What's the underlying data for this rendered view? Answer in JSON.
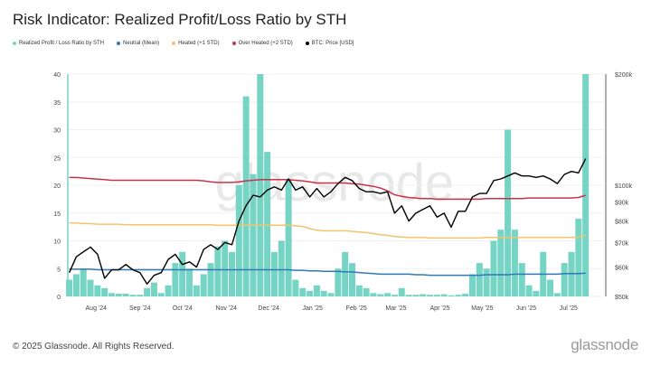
{
  "footer": {
    "copyright": "© 2025 Glassnode. All Rights Reserved.",
    "logo": "glassnode",
    "watermark": "glassnode"
  },
  "chart_data": {
    "type": "bar+line",
    "title": "Risk Indicator: Realized Profit/Loss Ratio by STH",
    "legend": [
      {
        "name": "Realized Profit / Loss Ratio by STH",
        "color": "#76d4c4"
      },
      {
        "name": "Neutral (Mean)",
        "color": "#2f7ab8"
      },
      {
        "name": "Heated (+1 STD)",
        "color": "#f2c46d"
      },
      {
        "name": "Over Heated (+2 STD)",
        "color": "#c8334a"
      },
      {
        "name": "BTC: Price [USD]",
        "color": "#000000"
      }
    ],
    "legend_position": "top-left",
    "y_left": {
      "range": [
        0,
        40
      ],
      "ticks": [
        "0",
        "5",
        "10",
        "15",
        "20",
        "25",
        "30",
        "35",
        "40"
      ]
    },
    "y_right": {
      "scale": "log",
      "range": [
        50000,
        200000
      ],
      "ticks": [
        {
          "v": 50000,
          "l": "$50k"
        },
        {
          "v": 60000,
          "l": "$60k"
        },
        {
          "v": 70000,
          "l": "$70k"
        },
        {
          "v": 80000,
          "l": "$80k"
        },
        {
          "v": 90000,
          "l": "$90k"
        },
        {
          "v": 100000,
          "l": "$100k"
        },
        {
          "v": 200000,
          "l": "$200k"
        }
      ]
    },
    "x_range": [
      "2024-07-12",
      "2025-07-26"
    ],
    "x_ticks": [
      {
        "d": "2024-08-01",
        "l": "Aug '24"
      },
      {
        "d": "2024-09-01",
        "l": "Sep '24"
      },
      {
        "d": "2024-10-01",
        "l": "Oct '24"
      },
      {
        "d": "2024-11-01",
        "l": "Nov '24"
      },
      {
        "d": "2024-12-01",
        "l": "Dec '24"
      },
      {
        "d": "2025-01-01",
        "l": "Jan '25"
      },
      {
        "d": "2025-02-01",
        "l": "Feb '25"
      },
      {
        "d": "2025-03-01",
        "l": "Mar '25"
      },
      {
        "d": "2025-04-01",
        "l": "Apr '25"
      },
      {
        "d": "2025-05-01",
        "l": "May '25"
      },
      {
        "d": "2025-06-01",
        "l": "Jun '25"
      },
      {
        "d": "2025-07-01",
        "l": "Jul '25"
      }
    ],
    "grid": true,
    "columns": [
      "date",
      "ratio",
      "btc_price",
      "neutral_mean",
      "heated_1std",
      "overheated_2std"
    ],
    "rows": [
      [
        "2024-07-13",
        3,
        58000,
        4.9,
        13.2,
        21.4
      ],
      [
        "2024-07-18",
        4,
        64000,
        4.9,
        13.2,
        21.4
      ],
      [
        "2024-07-23",
        5,
        66000,
        4.9,
        13.1,
        21.3
      ],
      [
        "2024-07-28",
        3,
        68000,
        4.9,
        13.1,
        21.2
      ],
      [
        "2024-08-02",
        2,
        65000,
        4.8,
        13.0,
        21.1
      ],
      [
        "2024-08-07",
        1.5,
        56000,
        4.8,
        13.0,
        21.0
      ],
      [
        "2024-08-12",
        0.6,
        59000,
        4.8,
        13.0,
        20.9
      ],
      [
        "2024-08-17",
        0.5,
        59000,
        4.8,
        13.0,
        20.9
      ],
      [
        "2024-08-22",
        0.5,
        61000,
        4.8,
        12.9,
        20.9
      ],
      [
        "2024-08-27",
        0.3,
        59000,
        4.8,
        12.9,
        20.9
      ],
      [
        "2024-09-01",
        0.3,
        58000,
        4.8,
        12.9,
        20.9
      ],
      [
        "2024-09-06",
        1.5,
        54000,
        4.8,
        12.9,
        20.9
      ],
      [
        "2024-09-11",
        2.5,
        57000,
        4.8,
        12.9,
        20.9
      ],
      [
        "2024-09-16",
        0.6,
        58000,
        4.8,
        12.9,
        20.9
      ],
      [
        "2024-09-21",
        2,
        63000,
        4.8,
        12.9,
        20.9
      ],
      [
        "2024-09-26",
        6,
        65000,
        4.8,
        12.9,
        20.9
      ],
      [
        "2024-10-01",
        8,
        61000,
        4.8,
        12.9,
        20.9
      ],
      [
        "2024-10-06",
        5,
        62000,
        4.8,
        12.9,
        20.9
      ],
      [
        "2024-10-11",
        2,
        60000,
        4.8,
        12.9,
        20.9
      ],
      [
        "2024-10-16",
        4,
        67000,
        4.8,
        12.9,
        20.8
      ],
      [
        "2024-10-21",
        6,
        69000,
        4.8,
        12.9,
        20.6
      ],
      [
        "2024-10-26",
        9,
        67000,
        4.8,
        12.8,
        20.5
      ],
      [
        "2024-10-31",
        10,
        70000,
        4.8,
        12.8,
        20.5
      ],
      [
        "2024-11-05",
        8,
        69000,
        4.8,
        12.8,
        20.5
      ],
      [
        "2024-11-10",
        20,
        80000,
        4.8,
        12.8,
        20.6
      ],
      [
        "2024-11-15",
        36,
        88000,
        4.8,
        12.8,
        20.8
      ],
      [
        "2024-11-20",
        22,
        94000,
        4.8,
        12.8,
        20.9
      ],
      [
        "2024-11-25",
        40,
        93000,
        4.8,
        12.8,
        21.0
      ],
      [
        "2024-11-30",
        26,
        97000,
        4.8,
        12.8,
        21.0
      ],
      [
        "2024-12-05",
        8,
        99000,
        4.8,
        12.8,
        21.0
      ],
      [
        "2024-12-10",
        10,
        97000,
        4.8,
        12.8,
        21.0
      ],
      [
        "2024-12-15",
        21,
        104000,
        4.8,
        12.8,
        21.0
      ],
      [
        "2024-12-20",
        3,
        97000,
        4.7,
        12.7,
        20.9
      ],
      [
        "2024-12-25",
        1.5,
        99000,
        4.7,
        12.6,
        20.8
      ],
      [
        "2024-12-30",
        1,
        93000,
        4.6,
        12.2,
        20.6
      ],
      [
        "2025-01-04",
        2,
        98000,
        4.6,
        11.9,
        20.4
      ],
      [
        "2025-01-09",
        1,
        93000,
        4.5,
        11.8,
        20.4
      ],
      [
        "2025-01-14",
        0.6,
        96000,
        4.5,
        11.8,
        20.4
      ],
      [
        "2025-01-19",
        5,
        101000,
        4.5,
        11.8,
        20.4
      ],
      [
        "2025-01-24",
        8,
        105000,
        4.4,
        11.8,
        20.4
      ],
      [
        "2025-01-29",
        6,
        103000,
        4.4,
        11.7,
        20.3
      ],
      [
        "2025-02-03",
        2,
        98000,
        4.3,
        11.6,
        20.2
      ],
      [
        "2025-02-08",
        1.5,
        96000,
        4.2,
        11.5,
        20.0
      ],
      [
        "2025-02-13",
        0.6,
        96000,
        4.1,
        11.3,
        19.8
      ],
      [
        "2025-02-18",
        0.4,
        95000,
        4.0,
        11.1,
        19.5
      ],
      [
        "2025-02-23",
        0.6,
        96000,
        4.0,
        11.0,
        19.0
      ],
      [
        "2025-02-28",
        0.3,
        84000,
        4.0,
        10.8,
        18.3
      ],
      [
        "2025-03-05",
        1.5,
        88000,
        4.0,
        10.7,
        18.0
      ],
      [
        "2025-03-10",
        0.3,
        80000,
        4.0,
        10.6,
        17.8
      ],
      [
        "2025-03-15",
        0.3,
        84000,
        3.9,
        10.6,
        17.7
      ],
      [
        "2025-03-20",
        0.4,
        86000,
        3.9,
        10.6,
        17.6
      ],
      [
        "2025-03-25",
        0.3,
        88000,
        3.8,
        10.5,
        17.6
      ],
      [
        "2025-03-30",
        0.3,
        82000,
        3.8,
        10.5,
        17.5
      ],
      [
        "2025-04-04",
        0.4,
        84000,
        3.8,
        10.5,
        17.5
      ],
      [
        "2025-04-09",
        0.2,
        77000,
        3.8,
        10.5,
        17.5
      ],
      [
        "2025-04-14",
        0.3,
        85000,
        3.8,
        10.5,
        17.5
      ],
      [
        "2025-04-19",
        0.5,
        85000,
        3.8,
        10.5,
        17.5
      ],
      [
        "2025-04-24",
        4,
        93000,
        3.8,
        10.5,
        17.5
      ],
      [
        "2025-04-29",
        6,
        95000,
        3.8,
        10.5,
        17.5
      ],
      [
        "2025-05-04",
        5,
        95000,
        3.9,
        10.6,
        17.6
      ],
      [
        "2025-05-09",
        10,
        103000,
        3.9,
        10.6,
        17.6
      ],
      [
        "2025-05-14",
        12,
        104000,
        3.9,
        10.6,
        17.6
      ],
      [
        "2025-05-19",
        30,
        106000,
        3.9,
        10.6,
        17.6
      ],
      [
        "2025-05-24",
        12,
        108000,
        4.0,
        10.6,
        17.6
      ],
      [
        "2025-05-29",
        6,
        106000,
        4.0,
        10.6,
        17.6
      ],
      [
        "2025-06-03",
        2,
        106000,
        4.0,
        10.6,
        17.7
      ],
      [
        "2025-06-08",
        1,
        105000,
        4.0,
        10.6,
        17.7
      ],
      [
        "2025-06-13",
        8,
        106000,
        4.0,
        10.6,
        17.7
      ],
      [
        "2025-06-18",
        3,
        104000,
        4.0,
        10.6,
        17.7
      ],
      [
        "2025-06-23",
        0.6,
        101000,
        4.0,
        10.6,
        17.7
      ],
      [
        "2025-06-28",
        6,
        107000,
        4.1,
        10.6,
        17.7
      ],
      [
        "2025-07-03",
        8,
        109000,
        4.1,
        10.6,
        17.7
      ],
      [
        "2025-07-08",
        14,
        108000,
        4.1,
        10.7,
        17.8
      ],
      [
        "2025-07-13",
        40,
        118000,
        4.2,
        11.0,
        18.2
      ]
    ]
  }
}
